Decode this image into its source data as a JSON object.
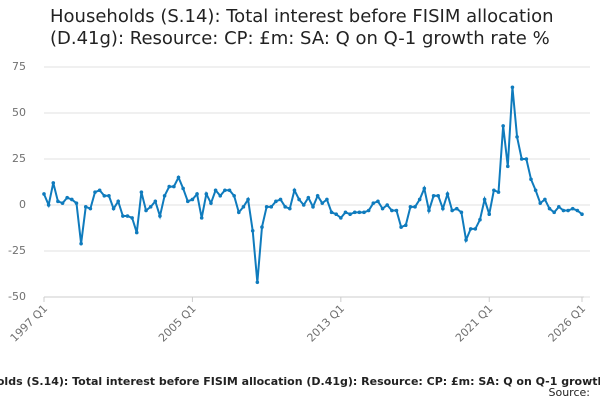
{
  "chart_data": {
    "type": "line",
    "title": "Households (S.14): Total interest before FISIM allocation (D.41g): Resource: CP: £m: SA: Q on Q-1 growth rate %",
    "source_label": "Source:",
    "categories": [
      "1997 Q1",
      null,
      null,
      null,
      null,
      null,
      null,
      null,
      null,
      null,
      null,
      null,
      null,
      null,
      null,
      null,
      null,
      null,
      null,
      null,
      null,
      null,
      null,
      null,
      null,
      null,
      null,
      null,
      null,
      null,
      null,
      null,
      "2005 Q1",
      null,
      null,
      null,
      null,
      null,
      null,
      null,
      null,
      null,
      null,
      null,
      null,
      null,
      null,
      null,
      null,
      null,
      null,
      null,
      null,
      null,
      null,
      null,
      null,
      null,
      null,
      null,
      null,
      null,
      null,
      null,
      "2013 Q1",
      null,
      null,
      null,
      null,
      null,
      null,
      null,
      null,
      null,
      null,
      null,
      null,
      null,
      null,
      null,
      null,
      null,
      null,
      null,
      null,
      null,
      null,
      null,
      null,
      null,
      null,
      null,
      null,
      null,
      null,
      null,
      "2021 Q1",
      null,
      null,
      null,
      null,
      null,
      null,
      null,
      null,
      null,
      null,
      null,
      null,
      null,
      null,
      null,
      null,
      null,
      null,
      null,
      "2026 Q1"
    ],
    "series": [
      {
        "name": "Households (S.14): Total interest before FISIM allocation (D.41g): Resource: CP: £m: SA: Q on Q-1 growth rate %",
        "color": "#0f7bbd",
        "values": [
          6,
          0,
          12,
          2,
          1,
          4,
          3,
          1,
          -21,
          -1,
          -2,
          7,
          8,
          5,
          5,
          -2,
          2,
          -6,
          -6,
          -7,
          -15,
          7,
          -3,
          -1,
          2,
          -6,
          5,
          10,
          10,
          15,
          9,
          2,
          3,
          6,
          -7,
          6,
          1,
          8,
          5,
          8,
          8,
          5,
          -4,
          -1,
          3,
          -14,
          -42,
          -12,
          -1,
          -1,
          2,
          3,
          -1,
          -2,
          8,
          3,
          0,
          4,
          -1,
          5,
          1,
          3,
          -4,
          -5,
          -7,
          -4,
          -5,
          -4,
          -4,
          -4,
          -3,
          1,
          2,
          -2,
          0,
          -3,
          -3,
          -12,
          -11,
          -1,
          -1,
          3,
          9,
          -3,
          5,
          5,
          -2,
          6,
          -3,
          -2,
          -4,
          -19,
          -13,
          -13,
          -8,
          3,
          -5,
          8,
          7,
          43,
          21,
          64,
          37,
          25,
          25,
          14,
          8,
          1,
          3,
          -2,
          -4,
          -1,
          -3,
          -3,
          -2,
          -3,
          -5
        ]
      }
    ],
    "ylim": [
      -50,
      75
    ],
    "yticks": [
      -50,
      -25,
      0,
      25,
      50,
      75
    ],
    "grid": true
  }
}
